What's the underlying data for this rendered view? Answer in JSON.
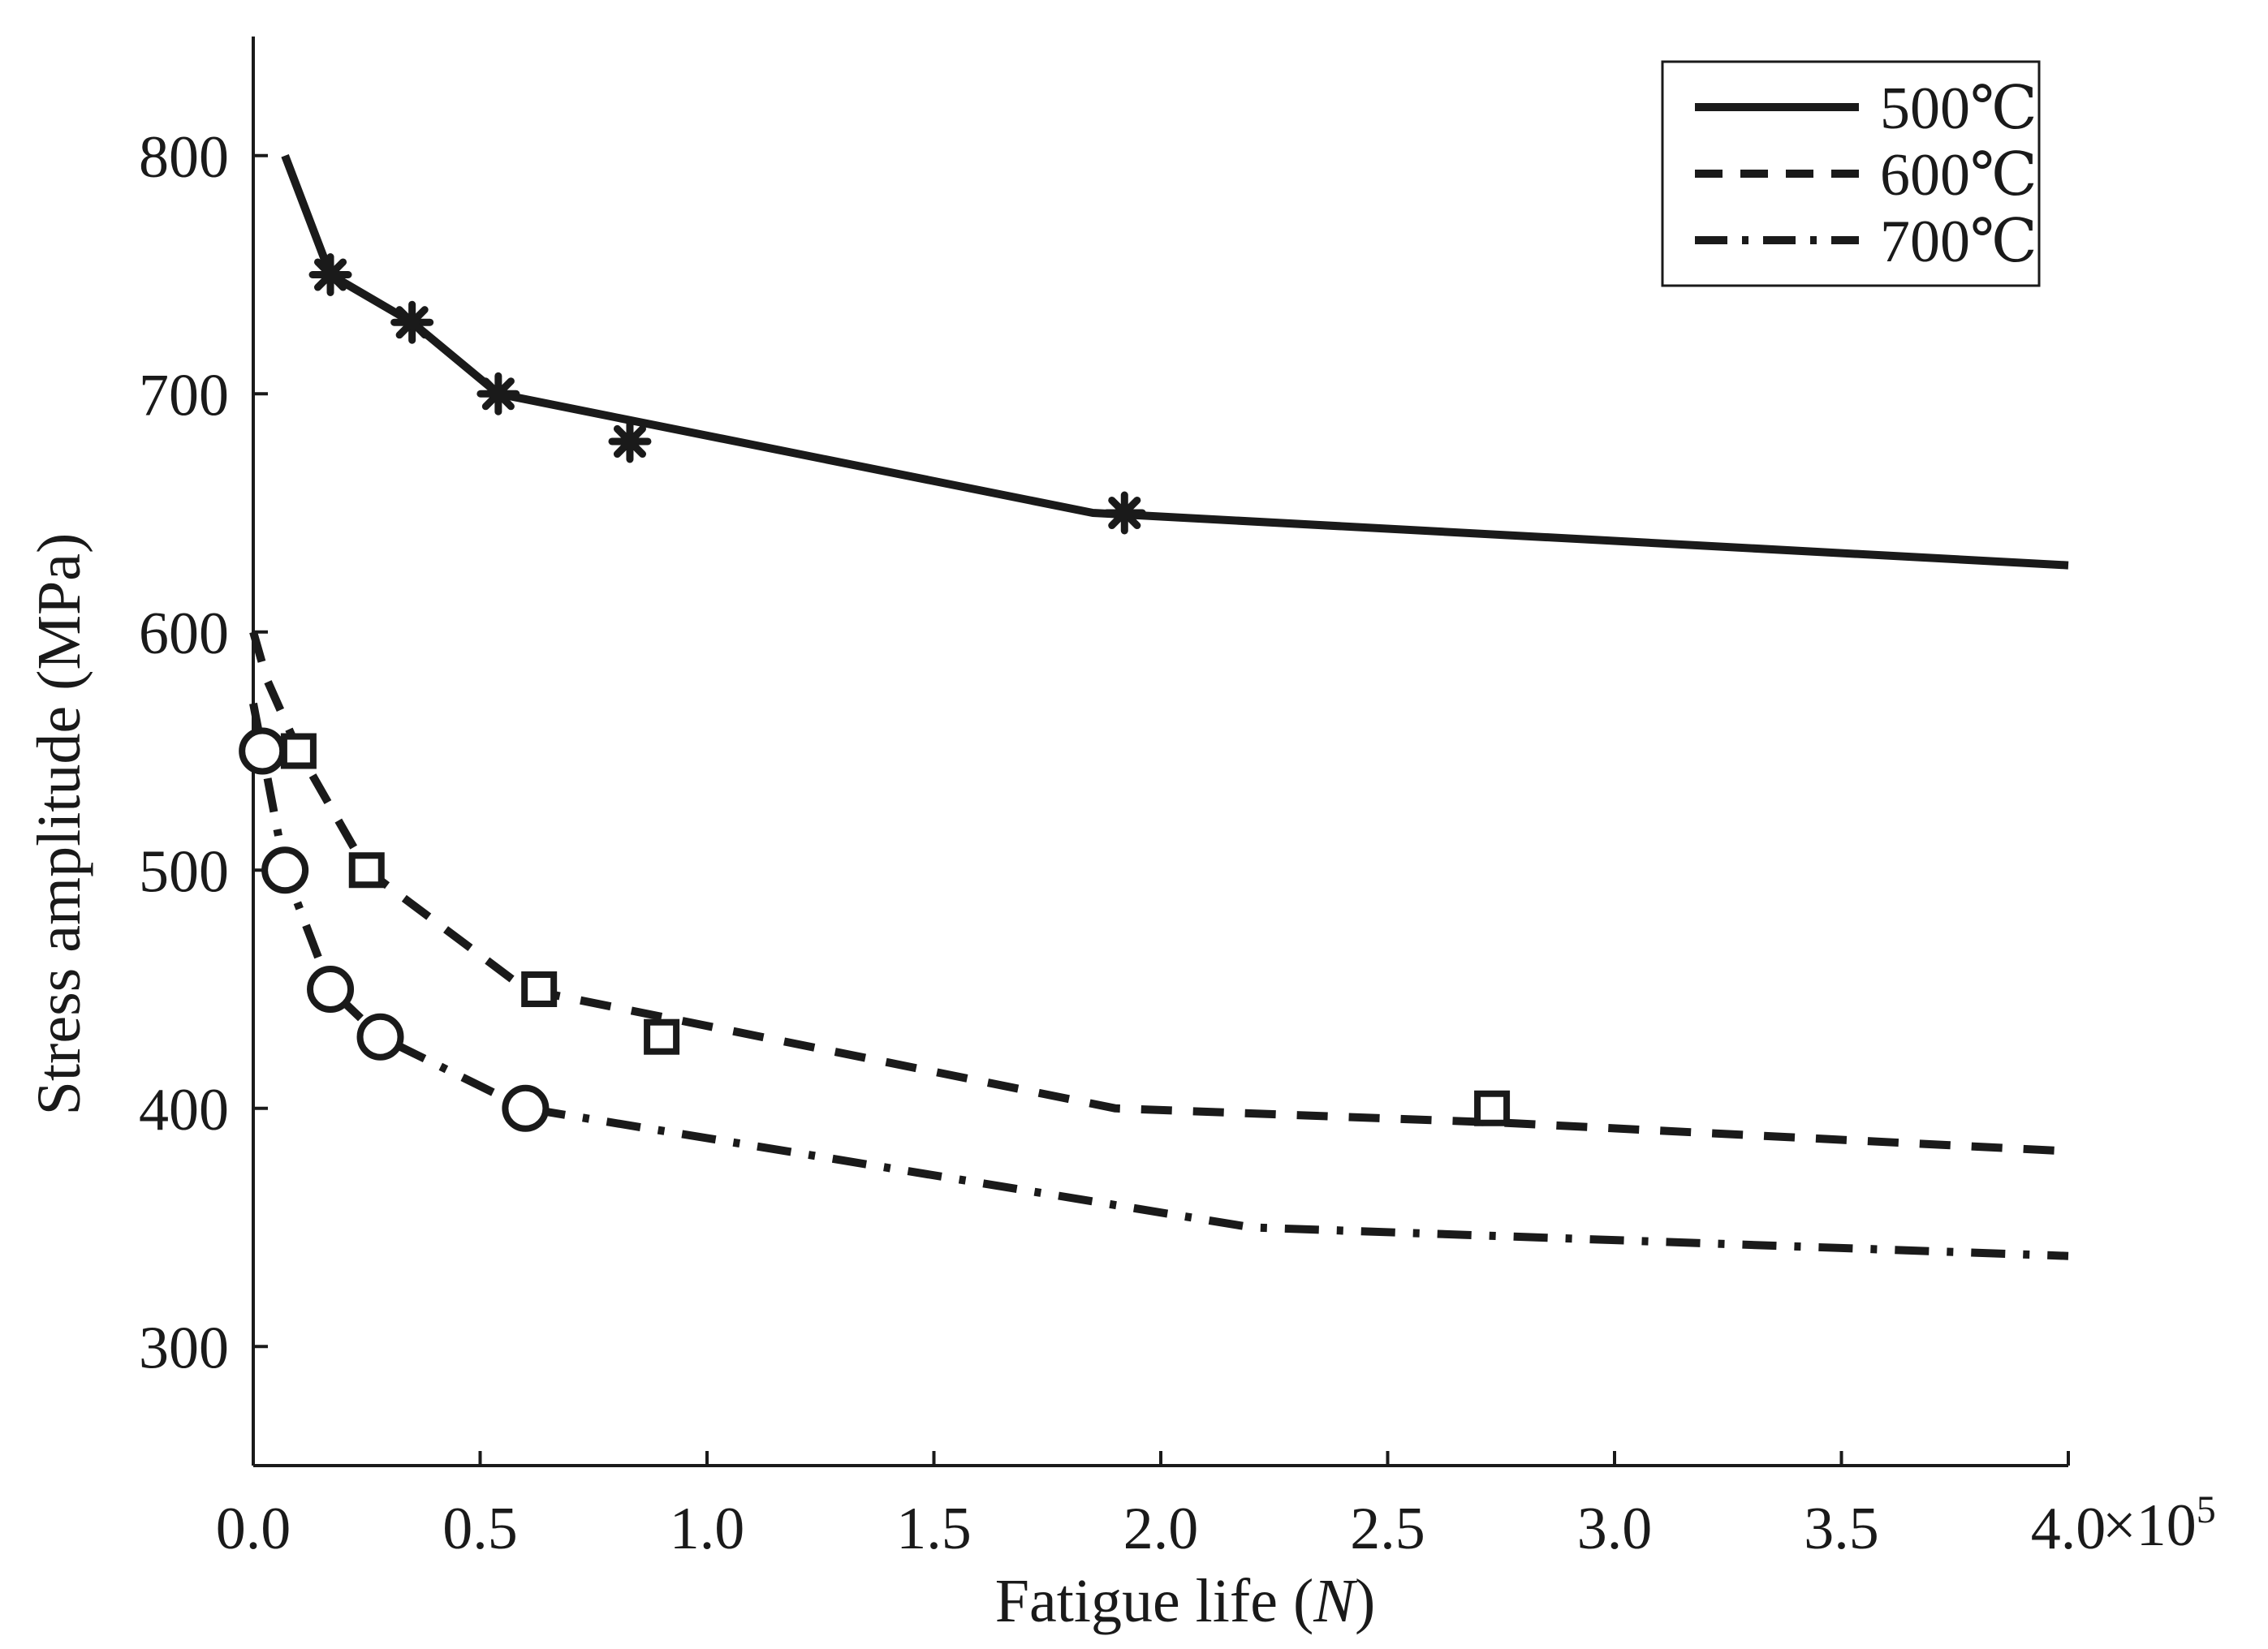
{
  "chart_data": {
    "type": "line",
    "title": "",
    "xlabel": "Fatigue life",
    "xlabel_var": "N",
    "ylabel": "Stress amplitude (MPa)",
    "x_multiplier": "×10",
    "x_exponent": "5",
    "xlim": [
      0,
      4.0
    ],
    "ylim": [
      250,
      850
    ],
    "xticks": [
      0.0,
      0.5,
      1.0,
      1.5,
      2.0,
      2.5,
      3.0,
      3.5,
      4.0
    ],
    "xtick_labels": [
      "0.0",
      "0.5",
      "1.0",
      "1.5",
      "2.0",
      "2.5",
      "3.0",
      "3.5",
      "4.0"
    ],
    "yticks": [
      300,
      400,
      500,
      600,
      700,
      800
    ],
    "ytick_labels": [
      "300",
      "400",
      "500",
      "600",
      "700",
      "800"
    ],
    "grid": false,
    "legend_position": "top-right",
    "series": [
      {
        "name": "500℃",
        "line_style": "solid",
        "marker": "asterisk",
        "color": "#1a1a1a",
        "curve": {
          "x": [
            0.07,
            0.17,
            0.35,
            0.54,
            1.85,
            4.0
          ],
          "y": [
            800,
            750,
            730,
            700,
            650,
            628
          ]
        },
        "points": {
          "x": [
            0.17,
            0.35,
            0.54,
            0.83,
            1.92
          ],
          "y": [
            750,
            730,
            700,
            680,
            650
          ]
        }
      },
      {
        "name": "600℃",
        "line_style": "dashed",
        "marker": "square",
        "color": "#1a1a1a",
        "curve": {
          "x": [
            0.0,
            0.03,
            0.1,
            0.25,
            0.6,
            1.9,
            2.75,
            4.0
          ],
          "y": [
            600,
            580,
            550,
            500,
            450,
            400,
            394,
            382
          ]
        },
        "points": {
          "x": [
            0.1,
            0.25,
            0.63,
            0.9,
            2.73
          ],
          "y": [
            550,
            500,
            450,
            430,
            400
          ]
        }
      },
      {
        "name": "700℃",
        "line_style": "dashdot",
        "marker": "circle",
        "color": "#1a1a1a",
        "curve": {
          "x": [
            0.0,
            0.02,
            0.07,
            0.17,
            0.28,
            0.6,
            2.2,
            4.0
          ],
          "y": [
            570,
            550,
            500,
            450,
            430,
            400,
            350,
            338
          ]
        },
        "points": {
          "x": [
            0.02,
            0.07,
            0.17,
            0.28,
            0.6
          ],
          "y": [
            550,
            500,
            450,
            430,
            400
          ]
        }
      }
    ]
  }
}
